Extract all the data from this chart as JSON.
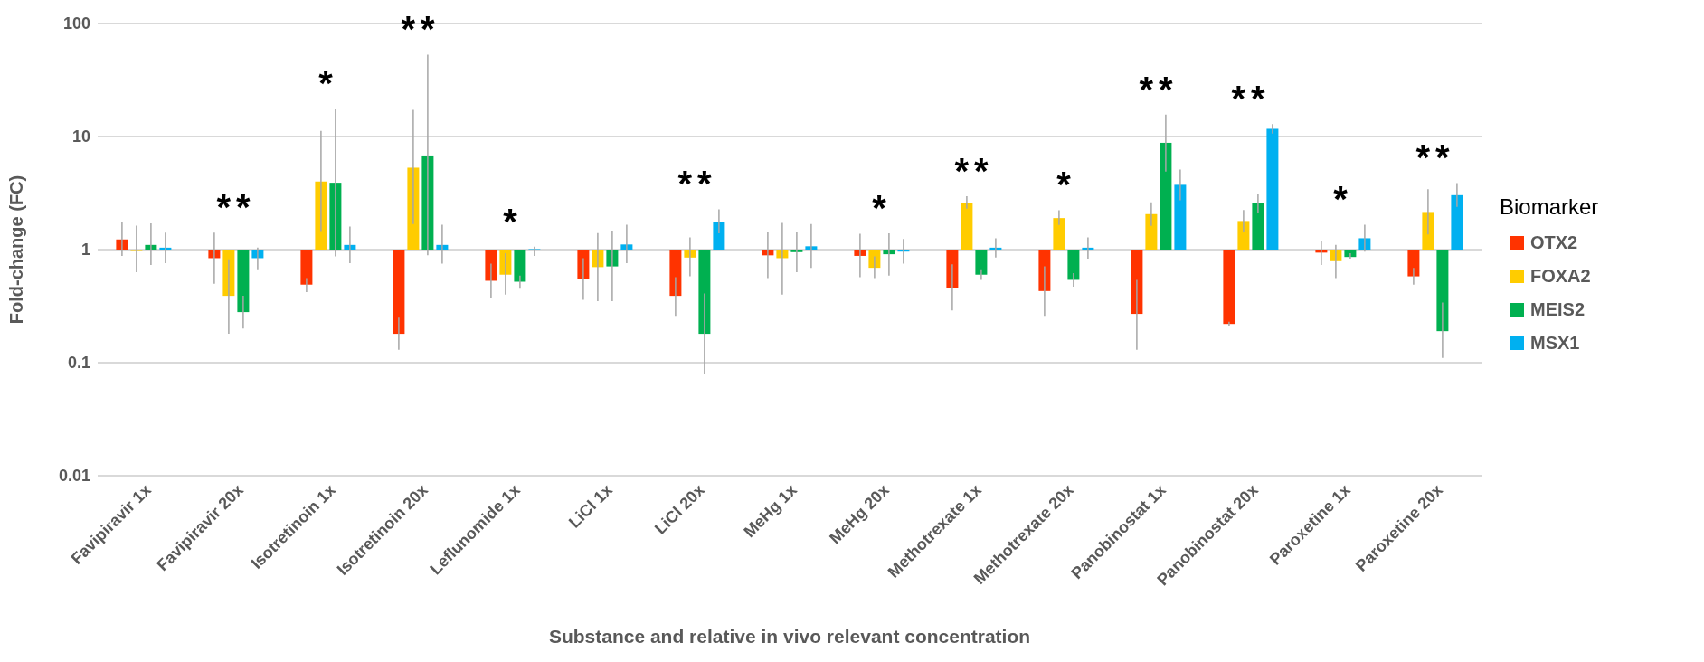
{
  "chart_data": {
    "type": "bar",
    "xlabel": "Substance and relative in vivo relevant concentration",
    "ylabel": "Fold-change (FC)",
    "legend_title": "Biomarker",
    "legend": "right",
    "grid": "y",
    "log": "y",
    "categories": [
      "Favipiravir 1x",
      "Favipiravir 20x",
      "Isotretinoin 1x",
      "Isotretinoin 20x",
      "Leflunomide 1x",
      "LiCl 1x",
      "LiCl 20x",
      "MeHg 1x",
      "MeHg 20x",
      "Methotrexate 1x",
      "Methotrexate 20x",
      "Panobinostat 1x",
      "Panobinostat 20x",
      "Paroxetine 1x",
      "Paroxetine 20x"
    ],
    "ylim": [
      0.01,
      100
    ],
    "yticks": [
      0.01,
      0.1,
      1,
      10,
      100
    ],
    "series": [
      {
        "name": "OTX2",
        "color": "#ff3300",
        "base": [
          1,
          1,
          1,
          1,
          1,
          1,
          1,
          1,
          1,
          1,
          1,
          1,
          1,
          1,
          1
        ],
        "values": [
          0.23,
          -0.16,
          -0.51,
          -0.82,
          -0.47,
          -0.45,
          -0.61,
          -0.11,
          -0.12,
          -0.54,
          -0.57,
          -0.73,
          -0.78,
          -0.06,
          -0.42
        ],
        "errors": [
          [
            0.88,
            1.74
          ],
          [
            0.5,
            1.41
          ],
          [
            0.42,
            0.56
          ],
          [
            0.13,
            0.25
          ],
          [
            0.37,
            0.75
          ],
          [
            0.36,
            0.84
          ],
          [
            0.26,
            0.57
          ],
          [
            0.56,
            1.43
          ],
          [
            0.57,
            1.38
          ],
          [
            0.29,
            0.74
          ],
          [
            0.26,
            0.71
          ],
          [
            0.13,
            0.54
          ],
          [
            0.21,
            0.23
          ],
          [
            0.73,
            1.2
          ],
          [
            0.49,
            0.69
          ]
        ]
      },
      {
        "name": "FOXA2",
        "color": "#ffcc00",
        "base": [
          1,
          1,
          1,
          1,
          1,
          1,
          1,
          1,
          1,
          1,
          1,
          1,
          1,
          1,
          1
        ],
        "values": [
          -0.01,
          -0.61,
          3.0,
          4.3,
          -0.4,
          -0.3,
          -0.15,
          -0.16,
          -0.31,
          1.6,
          0.9,
          1.06,
          0.79,
          -0.21,
          1.15
        ],
        "errors": [
          [
            0.63,
            1.63
          ],
          [
            0.18,
            0.82
          ],
          [
            1.46,
            11.2
          ],
          [
            1.68,
            17.2
          ],
          [
            0.4,
            0.93
          ],
          [
            0.35,
            1.4
          ],
          [
            0.58,
            1.28
          ],
          [
            0.4,
            1.72
          ],
          [
            0.56,
            0.87
          ],
          [
            2.3,
            2.97
          ],
          [
            1.65,
            2.23
          ],
          [
            1.62,
            2.62
          ],
          [
            1.42,
            2.24
          ],
          [
            0.56,
            1.1
          ],
          [
            1.36,
            3.42
          ]
        ]
      },
      {
        "name": "MEIS2",
        "color": "#00b050",
        "base": [
          1,
          1,
          1,
          1,
          1,
          1,
          1,
          1,
          1,
          1,
          1,
          1,
          1,
          1,
          1
        ],
        "values": [
          0.1,
          -0.72,
          2.9,
          5.8,
          -0.48,
          -0.29,
          -0.82,
          -0.05,
          -0.09,
          -0.4,
          -0.46,
          7.8,
          1.56,
          -0.14,
          -0.81
        ],
        "errors": [
          [
            0.73,
            1.71
          ],
          [
            0.2,
            0.39
          ],
          [
            0.87,
            17.6
          ],
          [
            0.89,
            53
          ],
          [
            0.45,
            0.59
          ],
          [
            0.35,
            1.47
          ],
          [
            0.08,
            0.41
          ],
          [
            0.63,
            1.44
          ],
          [
            0.59,
            1.39
          ],
          [
            0.54,
            0.67
          ],
          [
            0.47,
            0.62
          ],
          [
            4.9,
            15.6
          ],
          [
            2.1,
            3.1
          ],
          [
            0.83,
            0.93
          ],
          [
            0.11,
            0.34
          ]
        ]
      },
      {
        "name": "MSX1",
        "color": "#00b0f0",
        "base": [
          1,
          1,
          1,
          1,
          1,
          1,
          1,
          1,
          1,
          1,
          1,
          1,
          1,
          1,
          1
        ],
        "values": [
          0.04,
          -0.16,
          0.1,
          0.1,
          0.01,
          0.11,
          0.76,
          0.07,
          -0.04,
          0.04,
          0.04,
          2.74,
          10.7,
          0.26,
          2.03
        ],
        "errors": [
          [
            0.76,
            1.41
          ],
          [
            0.67,
            1.04
          ],
          [
            0.76,
            1.6
          ],
          [
            0.75,
            1.66
          ],
          [
            0.88,
            1.06
          ],
          [
            0.76,
            1.66
          ],
          [
            1.39,
            2.27
          ],
          [
            0.69,
            1.68
          ],
          [
            0.75,
            1.24
          ],
          [
            0.85,
            1.26
          ],
          [
            0.83,
            1.28
          ],
          [
            2.73,
            5.1
          ],
          [
            10.6,
            12.9
          ],
          [
            0.96,
            1.66
          ],
          [
            2.39,
            3.88
          ]
        ]
      }
    ],
    "annotations": [
      "**",
      "*",
      "**",
      "*",
      "**",
      "*",
      "**",
      "*",
      "**",
      "**",
      "*",
      "**"
    ]
  }
}
